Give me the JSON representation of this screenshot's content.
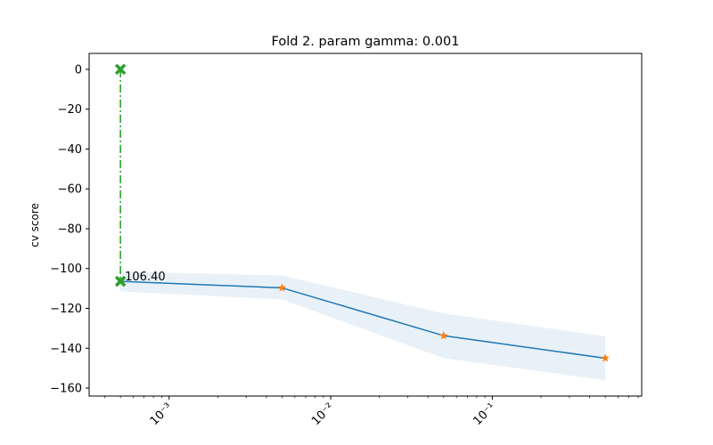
{
  "chart_data": {
    "type": "line",
    "title": "Fold 2. param gamma: 0.001",
    "xlabel": "",
    "ylabel": "cv score",
    "x_scale": "log",
    "xlim": [
      0.00032,
      0.84
    ],
    "ylim": [
      -164,
      8
    ],
    "grid": false,
    "x_ticks": [
      {
        "value": 0.001,
        "label": "10⁻³"
      },
      {
        "value": 0.01,
        "label": "10⁻²"
      },
      {
        "value": 0.1,
        "label": "10⁻¹"
      }
    ],
    "y_ticks": [
      0,
      -20,
      -40,
      -60,
      -80,
      -100,
      -120,
      -140,
      -160
    ],
    "series": [
      {
        "x": [
          0.0005,
          0.005,
          0.05,
          0.5
        ],
        "y": [
          -106.4,
          -109.7,
          -133.7,
          -145.0
        ],
        "band_lower": [
          -111.5,
          -115.5,
          -145.0,
          -156.0
        ],
        "band_upper": [
          -101.5,
          -103.5,
          -122.5,
          -134.0
        ],
        "line_color": "#1f77b4",
        "band_color": "#1f77b4",
        "marker_color": "#ff7f0e",
        "marker": "star"
      }
    ],
    "best": {
      "x": 0.0005,
      "y_top": 0,
      "y_bottom": -106.4,
      "label": "106.40",
      "color": "#2ca02c",
      "marker": "x",
      "line_style": "dash-dot"
    }
  }
}
